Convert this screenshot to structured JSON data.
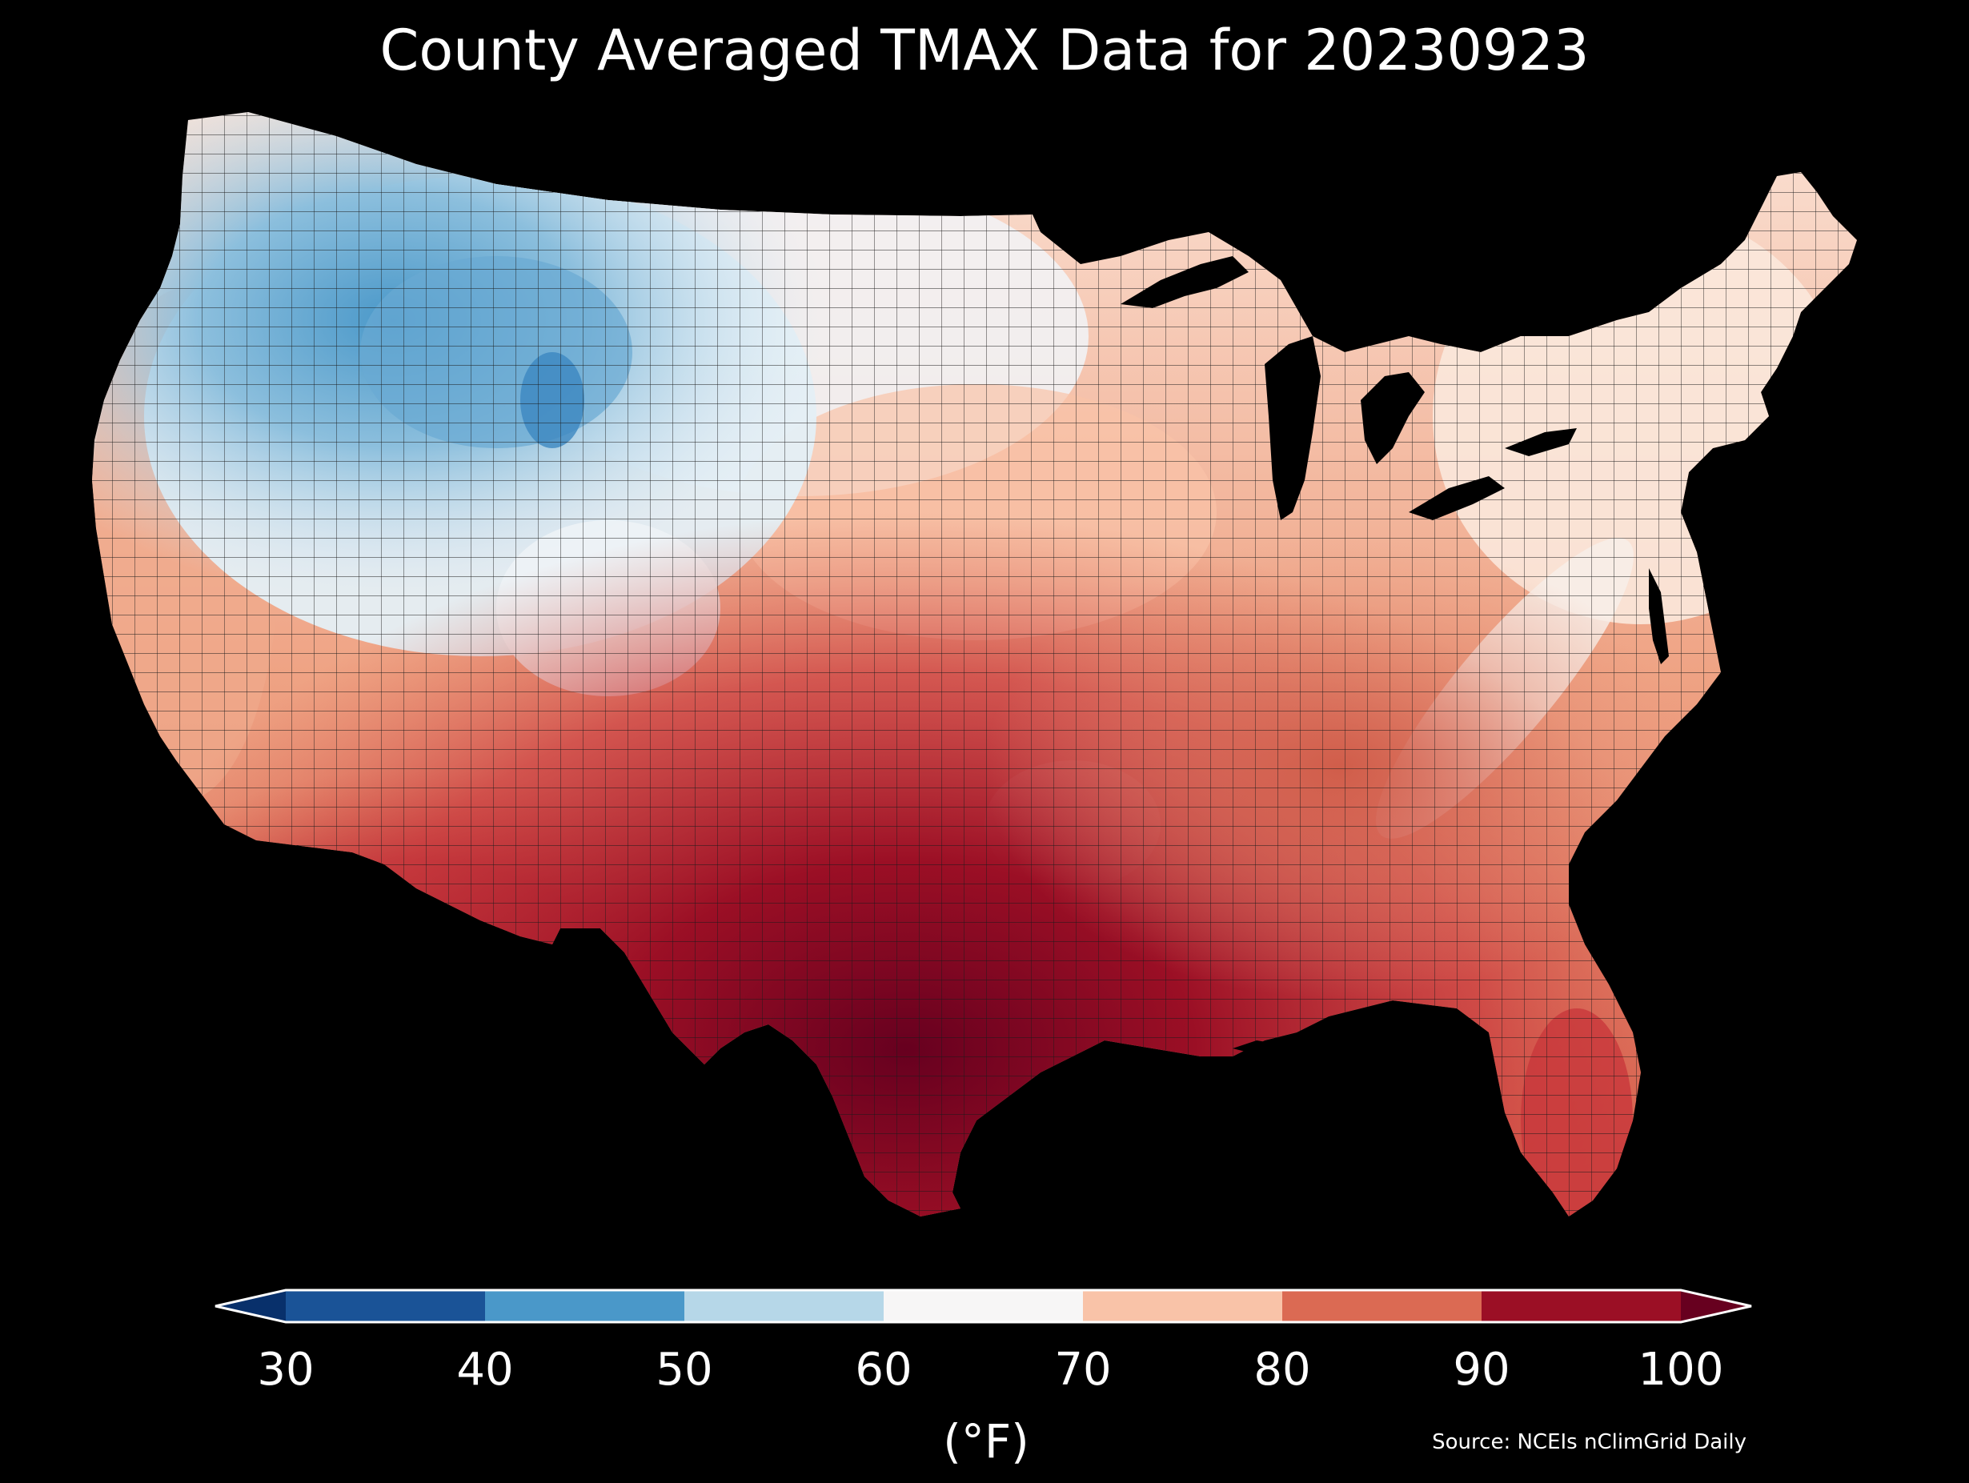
{
  "title": "County Averaged TMAX Data for 20230923",
  "colorbar": {
    "ticks": [
      "30",
      "40",
      "50",
      "60",
      "70",
      "80",
      "90",
      "100"
    ],
    "unit": "(°F)",
    "bins": [
      {
        "from": 30,
        "to": 40,
        "color": "#1a5397"
      },
      {
        "from": 40,
        "to": 50,
        "color": "#4a98c9"
      },
      {
        "from": 50,
        "to": 60,
        "color": "#b6d7e8"
      },
      {
        "from": 60,
        "to": 70,
        "color": "#f7f6f6"
      },
      {
        "from": 70,
        "to": 80,
        "color": "#f9c3a8"
      },
      {
        "from": 80,
        "to": 90,
        "color": "#db6a53"
      },
      {
        "from": 90,
        "to": 100,
        "color": "#9b0f25"
      }
    ],
    "under_color": "#08306b",
    "over_color": "#67001f",
    "extend": "both"
  },
  "source": "Source: NCEIs nClimGrid Daily",
  "map": {
    "region": "Contiguous United States",
    "background": "#000000",
    "county_border_color": "#1a1a1a"
  }
}
